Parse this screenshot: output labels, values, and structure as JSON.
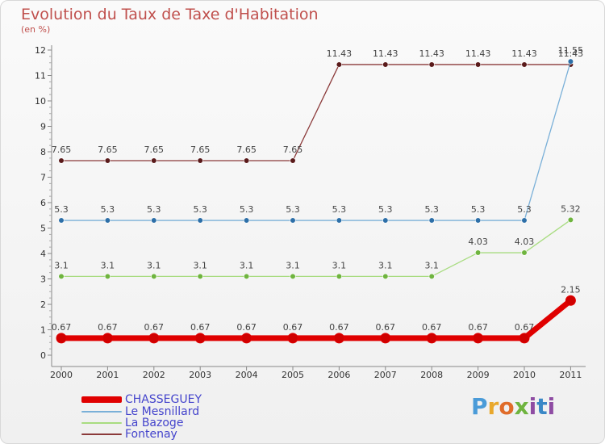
{
  "header": {
    "title": "Evolution du Taux de Taxe d'Habitation",
    "subtitle": "(en %)"
  },
  "brand": {
    "logo_text": "Proxiti"
  },
  "chart_data": {
    "type": "line",
    "title": "Evolution du Taux de Taxe d'Habitation",
    "ylabel": "(en %)",
    "xlabel": "",
    "categories": [
      "2000",
      "2001",
      "2002",
      "2003",
      "2004",
      "2005",
      "2006",
      "2007",
      "2008",
      "2009",
      "2010",
      "2011"
    ],
    "yticks": [
      "0",
      "1",
      "2",
      "3",
      "4",
      "5",
      "6",
      "7",
      "8",
      "9",
      "10",
      "11",
      "12"
    ],
    "ylim": [
      0,
      12
    ],
    "grid": false,
    "legend_position": "bottom-left",
    "series": [
      {
        "name": "CHASSEGUEY",
        "color": "#e00000",
        "values": [
          0.67,
          0.67,
          0.67,
          0.67,
          0.67,
          0.67,
          0.67,
          0.67,
          0.67,
          0.67,
          0.67,
          2.15
        ],
        "labels": [
          "0.67",
          "0.67",
          "0.67",
          "0.67",
          "0.67",
          "0.67",
          "0.67",
          "0.67",
          "0.67",
          "0.67",
          "0.67",
          "2.15"
        ]
      },
      {
        "name": "Le Mesnillard",
        "color": "#7ab0d8",
        "values": [
          5.3,
          5.3,
          5.3,
          5.3,
          5.3,
          5.3,
          5.3,
          5.3,
          5.3,
          5.3,
          5.3,
          11.55
        ],
        "labels": [
          "5.3",
          "5.3",
          "5.3",
          "5.3",
          "5.3",
          "5.3",
          "5.3",
          "5.3",
          "5.3",
          "5.3",
          "5.3",
          "11.55"
        ]
      },
      {
        "name": "La Bazoge",
        "color": "#a8dc80",
        "values": [
          3.1,
          3.1,
          3.1,
          3.1,
          3.1,
          3.1,
          3.1,
          3.1,
          3.1,
          4.03,
          4.03,
          5.32
        ],
        "labels": [
          "3.1",
          "3.1",
          "3.1",
          "3.1",
          "3.1",
          "3.1",
          "3.1",
          "3.1",
          "3.1",
          "4.03",
          "4.03",
          "5.32"
        ]
      },
      {
        "name": "Fontenay",
        "color": "#8b3a3a",
        "values": [
          7.65,
          7.65,
          7.65,
          7.65,
          7.65,
          7.65,
          11.43,
          11.43,
          11.43,
          11.43,
          11.43,
          11.43
        ],
        "labels": [
          "7.65",
          "7.65",
          "7.65",
          "7.65",
          "7.65",
          "7.65",
          "11.43",
          "11.43",
          "11.43",
          "11.43",
          "11.43",
          "11.43"
        ]
      }
    ]
  }
}
